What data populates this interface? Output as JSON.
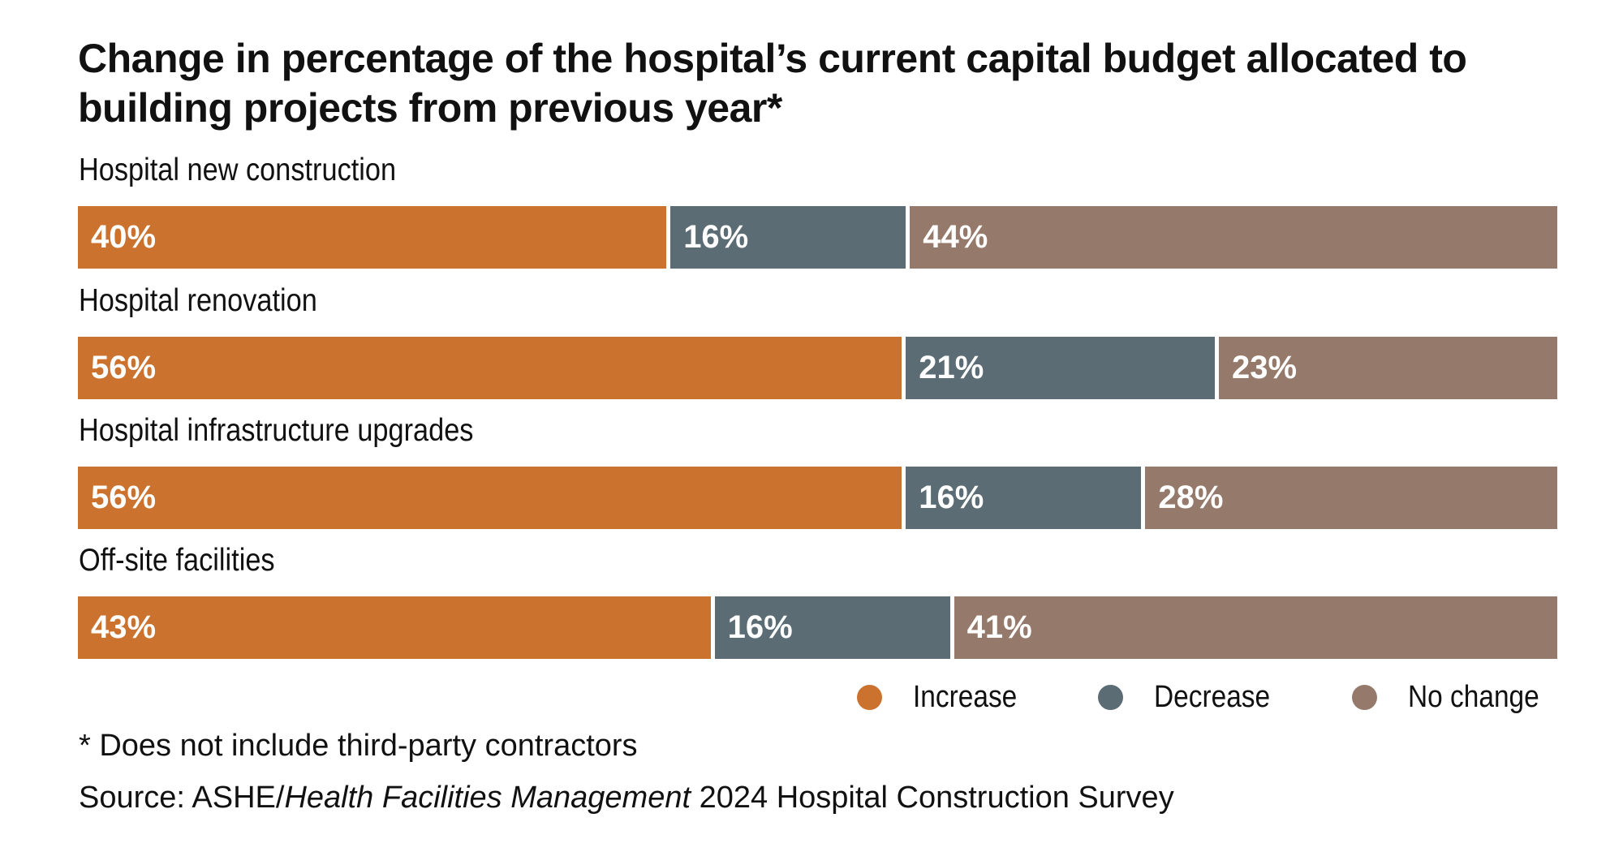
{
  "chart_data": {
    "type": "bar",
    "orientation": "horizontal-stacked-100",
    "title": "Change in percentage of the hospital’s current capital budget allocated to building projects from previous year*",
    "categories": [
      "Hospital new construction",
      "Hospital renovation",
      "Hospital infrastructure upgrades",
      "Off-site facilities"
    ],
    "series": [
      {
        "name": "Increase",
        "color": "#CC722F",
        "values": [
          40,
          56,
          56,
          43
        ],
        "labels": [
          "40%",
          "56%",
          "56%",
          "43%"
        ]
      },
      {
        "name": "Decrease",
        "color": "#5B6C75",
        "values": [
          16,
          21,
          16,
          16
        ],
        "labels": [
          "16%",
          "21%",
          "16%",
          "16%"
        ]
      },
      {
        "name": "No change",
        "color": "#957A6B",
        "values": [
          44,
          23,
          28,
          41
        ],
        "labels": [
          "44%",
          "23%",
          "28%",
          "41%"
        ]
      }
    ],
    "legend_placement": "bottom-right",
    "grid": false,
    "footnote": "* Does not include third-party contractors",
    "source_prefix": "Source: ASHE/",
    "source_italic": "Health Facilities Management",
    "source_suffix": " 2024 Hospital Construction Survey"
  }
}
